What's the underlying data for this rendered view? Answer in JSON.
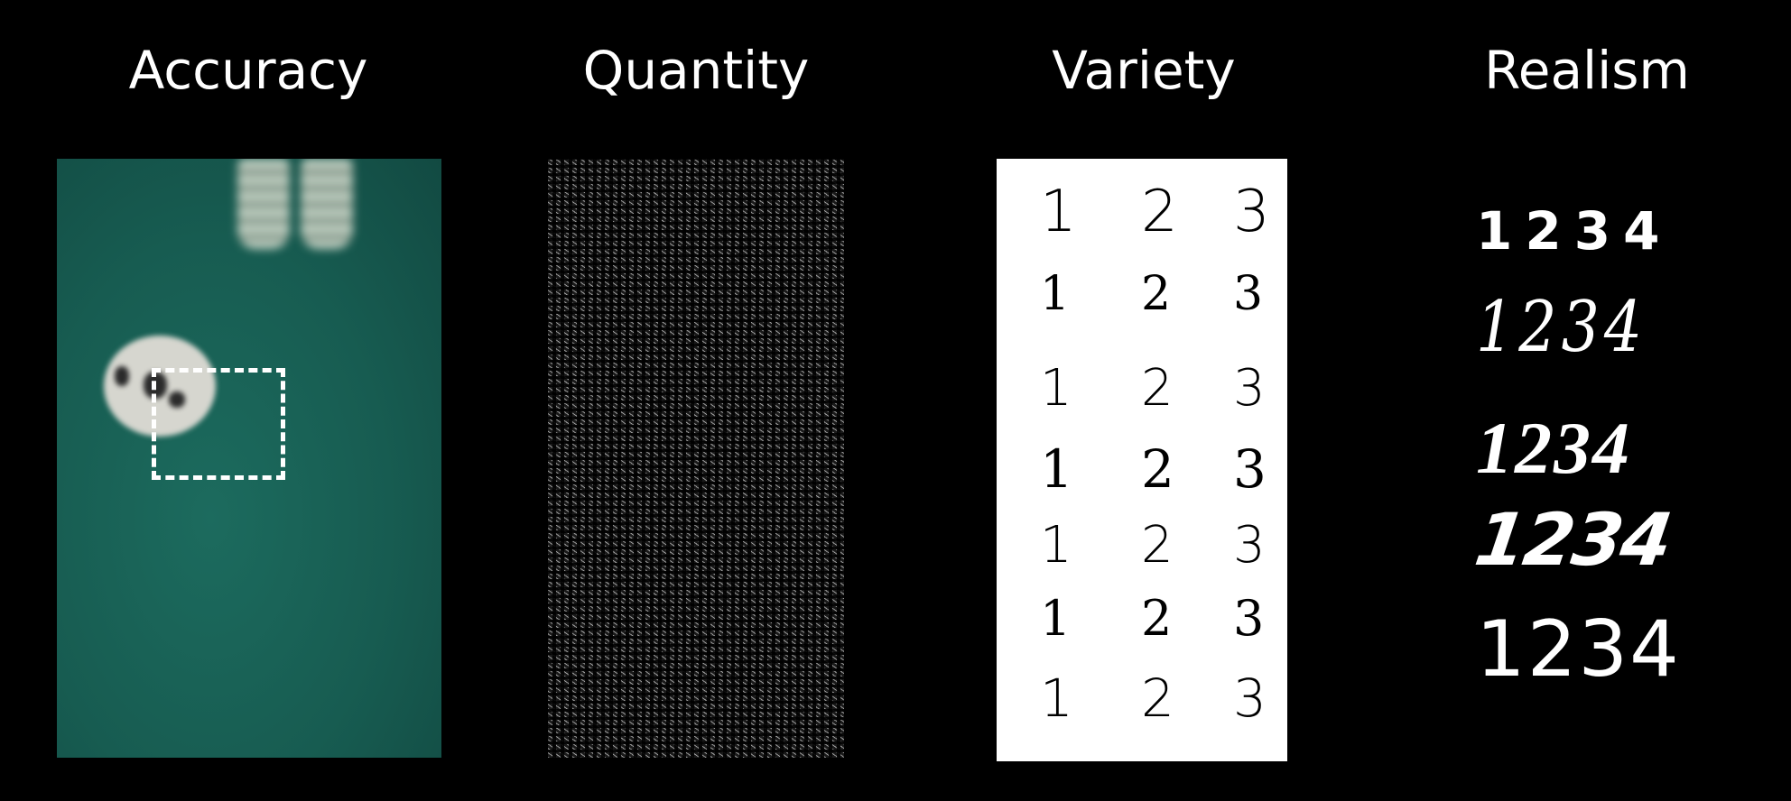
{
  "headings": {
    "accuracy": "Accuracy",
    "quantity": "Quantity",
    "variety": "Variety",
    "realism": "Realism"
  },
  "variety": {
    "rows": [
      [
        "1",
        "2",
        "3"
      ],
      [
        "1",
        "2",
        "3"
      ],
      [
        "1",
        "2",
        "3"
      ],
      [
        "1",
        "2",
        "3"
      ],
      [
        "1",
        "2",
        "3"
      ],
      [
        "1",
        "2",
        "3"
      ],
      [
        "1",
        "2",
        "3"
      ]
    ]
  },
  "realism": {
    "rows": [
      "1234",
      "1234",
      "1234",
      "1234",
      "1234"
    ]
  },
  "colors": {
    "background": "#000000",
    "field_green": "#175c51",
    "dashed_box": "#ffffff"
  }
}
